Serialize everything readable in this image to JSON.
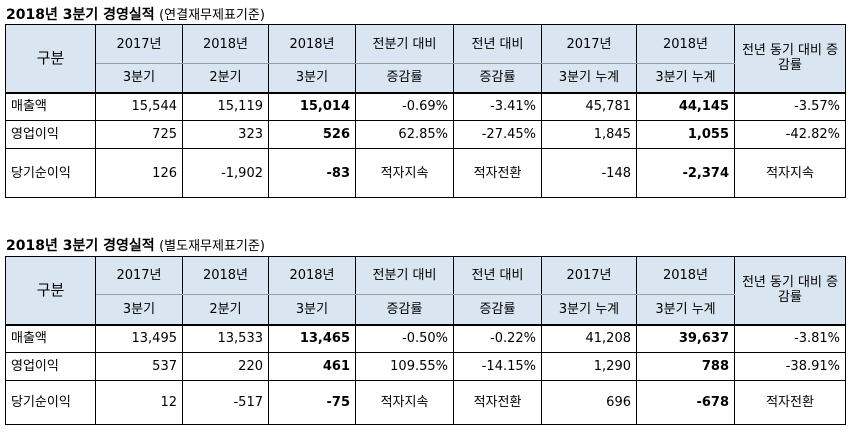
{
  "tables": [
    {
      "title": "2018년 3분기 경영실적",
      "subtitle": "(연결재무제표기준)",
      "header_row1": [
        "구분",
        "2017년",
        "2018년",
        "2018년",
        "전분기 대비",
        "전년 대비",
        "2017년",
        "2018년",
        "전년 동기 대비 증감률"
      ],
      "header_row2": [
        "3분기",
        "2분기",
        "3분기",
        "증감률",
        "증감률",
        "3분기 누계",
        "3분기 누계"
      ],
      "rows": [
        {
          "label": "매출액",
          "cells": [
            "15,544",
            "15,119",
            "15,014",
            "-0.69%",
            "-3.41%",
            "45,781",
            "44,145",
            "-3.57%"
          ]
        },
        {
          "label": "영업이익",
          "cells": [
            "725",
            "323",
            "526",
            "62.85%",
            "-27.45%",
            "1,845",
            "1,055",
            "-42.82%"
          ]
        },
        {
          "label": "당기순이익",
          "cells": [
            "126",
            "-1,902",
            "-83",
            "적자지속",
            "적자전환",
            "-148",
            "-2,374",
            "적자지속"
          ]
        }
      ]
    },
    {
      "title": "2018년 3분기 경영실적",
      "subtitle": "(별도재무제표기준)",
      "header_row1": [
        "구분",
        "2017년",
        "2018년",
        "2018년",
        "전분기 대비",
        "전년 대비",
        "2017년",
        "2018년",
        "전년 동기 대비 증감률"
      ],
      "header_row2": [
        "3분기",
        "2분기",
        "3분기",
        "증감률",
        "증감률",
        "3분기 누계",
        "3분기 누계"
      ],
      "rows": [
        {
          "label": "매출액",
          "cells": [
            "13,495",
            "13,533",
            "13,465",
            "-0.50%",
            "-0.22%",
            "41,208",
            "39,637",
            "-3.81%"
          ]
        },
        {
          "label": "영업이익",
          "cells": [
            "537",
            "220",
            "461",
            "109.55%",
            "-14.15%",
            "1,290",
            "788",
            "-38.91%"
          ]
        },
        {
          "label": "당기순이익",
          "cells": [
            "12",
            "-517",
            "-75",
            "적자지속",
            "적자전환",
            "696",
            "-678",
            "적자전환"
          ]
        }
      ]
    }
  ]
}
